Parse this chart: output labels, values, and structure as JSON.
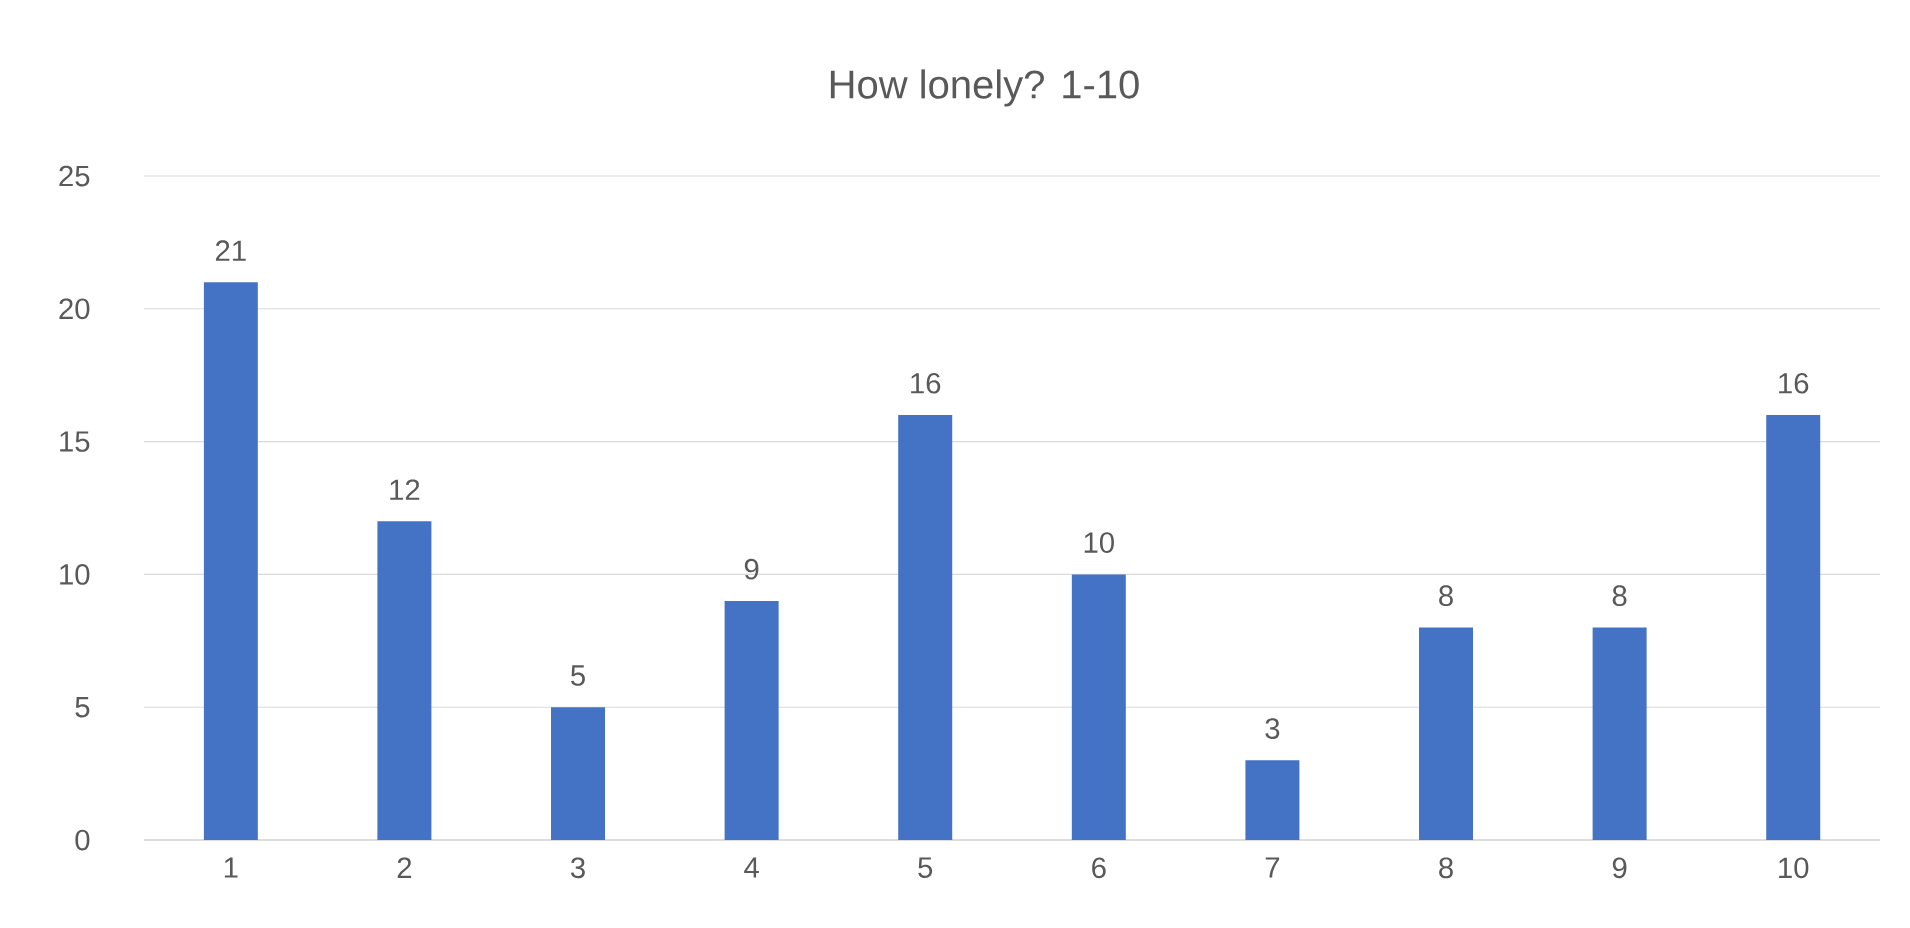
{
  "chart_data": {
    "type": "bar",
    "title": "How lonely? 1-10",
    "categories": [
      "1",
      "2",
      "3",
      "4",
      "5",
      "6",
      "7",
      "8",
      "9",
      "10"
    ],
    "values": [
      21,
      12,
      5,
      9,
      16,
      10,
      3,
      8,
      8,
      16
    ],
    "color": "#4472c4",
    "ylim": [
      0,
      25
    ],
    "yticks": [
      0,
      5,
      10,
      15,
      20,
      25
    ],
    "grid": "y",
    "data_labels": true
  }
}
